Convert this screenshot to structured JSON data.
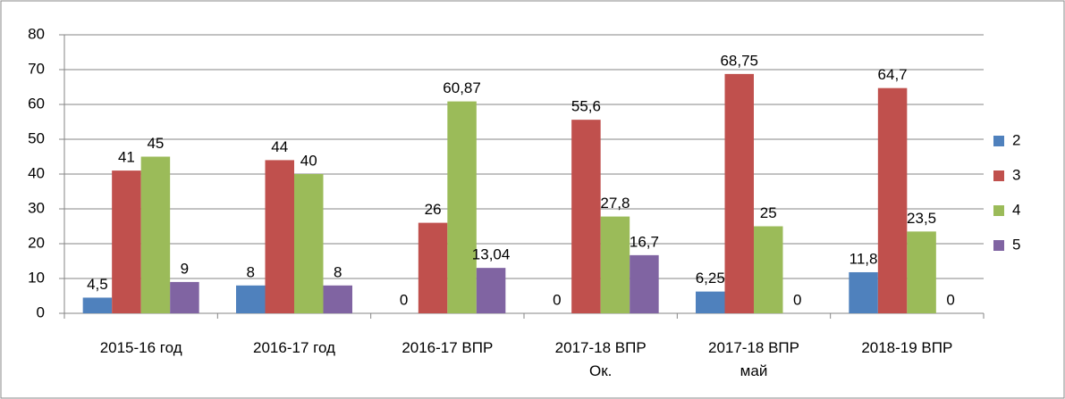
{
  "chart_data": {
    "type": "bar",
    "categories": [
      "2015-16 год",
      "2016-17 год",
      "2016-17 ВПР",
      "2017-18 ВПР Ок.",
      "2017-18 ВПР май",
      "2018-19 ВПР"
    ],
    "series": [
      {
        "name": "2",
        "color": "#4f81bd",
        "values": [
          4.5,
          8,
          0,
          0,
          6.25,
          11.8
        ],
        "value_labels": [
          "4,5",
          "8",
          "0",
          "0",
          "6,25",
          "11,8"
        ]
      },
      {
        "name": "3",
        "color": "#c0504d",
        "values": [
          41,
          44,
          26,
          55.6,
          68.75,
          64.7
        ],
        "value_labels": [
          "41",
          "44",
          "26",
          "55,6",
          "68,75",
          "64,7"
        ]
      },
      {
        "name": "4",
        "color": "#9bbb59",
        "values": [
          45,
          40,
          60.87,
          27.8,
          25,
          23.5
        ],
        "value_labels": [
          "45",
          "40",
          "60,87",
          "27,8",
          "25",
          "23,5"
        ]
      },
      {
        "name": "5",
        "color": "#8064a2",
        "values": [
          9,
          8,
          13.04,
          16.7,
          0,
          0
        ],
        "value_labels": [
          "9",
          "8",
          "13,04",
          "16,7",
          "0",
          "0"
        ]
      }
    ],
    "ylim": [
      0,
      80
    ],
    "yticks": [
      0,
      10,
      20,
      30,
      40,
      50,
      60,
      70,
      80
    ],
    "grid": true,
    "legend": "right"
  }
}
